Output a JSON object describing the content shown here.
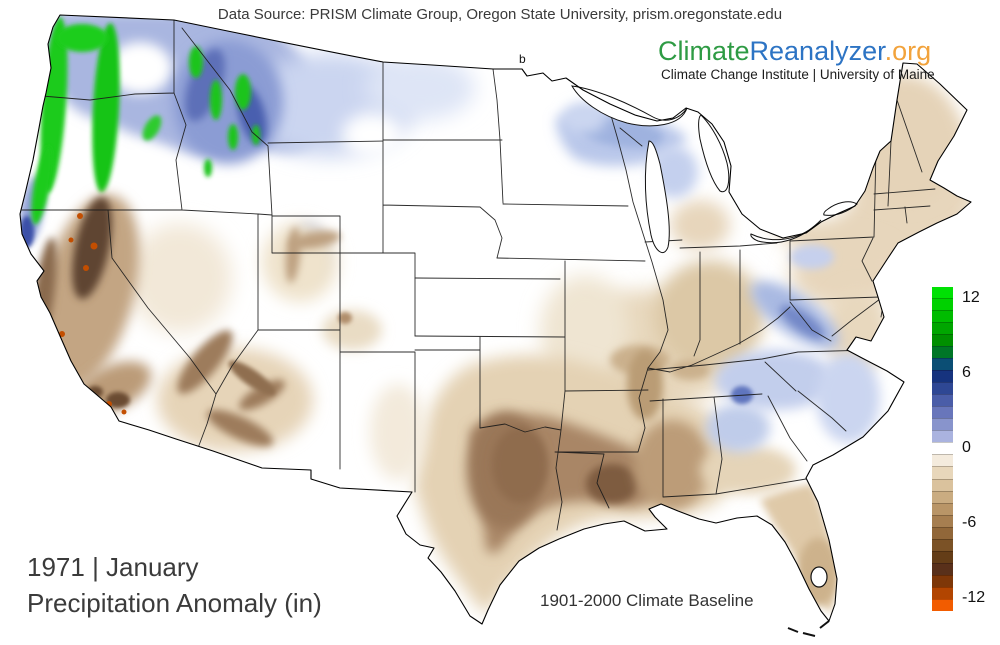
{
  "attribution": {
    "data_source": "Data Source: PRISM Climate Group, Oregon State University, prism.oregonstate.edu"
  },
  "branding": {
    "wordmark": {
      "part1": "Climate",
      "part2": "Reanalyzer",
      "part3": ".org",
      "part1_color": "#2E9B44",
      "part2_color": "#2D74C4",
      "part3_color": "#F2A33C"
    },
    "tagline": "Climate Change Institute | University of Maine"
  },
  "map_info": {
    "year_month": "1971 | January",
    "variable": "Precipitation Anomaly (in)",
    "baseline": "1901-2000 Climate Baseline",
    "stray_label": "b"
  },
  "colorbar": {
    "unit": "in",
    "min": -13,
    "max": 13,
    "ticks": [
      {
        "value": 12,
        "label": "12"
      },
      {
        "value": 6,
        "label": "6"
      },
      {
        "value": 0,
        "label": "0"
      },
      {
        "value": -6,
        "label": "-6"
      },
      {
        "value": -12,
        "label": "-12"
      }
    ],
    "colors": [
      "#00E104",
      "#00D100",
      "#00BC00",
      "#00A600",
      "#008F00",
      "#007627",
      "#0B4E74",
      "#16337E",
      "#2E4794",
      "#4A5DA8",
      "#6876BB",
      "#8894CC",
      "#AAB3DF",
      "#FFFFFF",
      "#F4EBDD",
      "#E8D7BB",
      "#DAC29D",
      "#CAAC81",
      "#B99567",
      "#A67E50",
      "#916739",
      "#7B5226",
      "#643D17",
      "#59301A",
      "#7E3708",
      "#B24501",
      "#F25C00"
    ]
  },
  "map_regions": {
    "base_land": "#FFFFFF",
    "white_patch": "#FFFFFF",
    "pnw_blue": "#A9B6E0",
    "montana_light_blue": "#CBD5F0",
    "dakotas_faint_blue": "#DEE5F6",
    "coastal_green": "#1BCB1B",
    "cascades_green": "#18C418",
    "olympics_green": "#1ACD1A",
    "idaho_montana_blue": "#8B9CD4",
    "idaho_blue_streak": "#5D70B8",
    "idaho_blue_streak2": "#4A5FAF",
    "mountain_green": "#1FC41F",
    "blue_mtns_green": "#2ECB2E",
    "or_ca_coast_blue": "#8FA0D6",
    "nw_ca_coast_navy": "#3A4FA8",
    "california_brown": "#C3A583",
    "sierra_dark_brown": "#5F4430",
    "ca_coast_range_brown": "#8A6A4E",
    "socal_brown": "#BB9B78",
    "socal_dark_spot": "#6B4B33",
    "deficit_orange_spot": "#C34E00",
    "nevada_faint_tan": "#F2E8D8",
    "utah_tan": "#EFE3CC",
    "utah_brown_vein": "#BDA080",
    "arizona_tan": "#E6D4B8",
    "arizona_brown_vein": "#9D7C5B",
    "mogollon_brown": "#8F6E4F",
    "sw_colorado_tan": "#E9DCC4",
    "san_juan_brown": "#B08E6C",
    "wyoming_blue_spike": "#2E49A5",
    "wyoming_blue_halo": "#AFBDE5",
    "east_nm_tan": "#F3EADB",
    "southern_plains_tan": "#E4D2B4",
    "gulf_brown_wash": "#A98666",
    "east_texas_brown": "#9A7758",
    "texas_brown_core": "#8F6C4E",
    "louisiana_dark_brown": "#7E5B41",
    "ms_al_brown": "#BC9C78",
    "midsouth_tan": "#E7D7BC",
    "ohio_valley_tan": "#DCC8A6",
    "ky_tn_brown": "#CBB18D",
    "west_tn_brown": "#BA9C75",
    "mo_tan_wash": "#EFE5D2",
    "ozark_tan": "#EDE1CB",
    "great_lakes_blue": "#B9C7EA",
    "superior_blue_core": "#9FB2DF",
    "n_michigan_blue": "#C4D0EE",
    "ne_minnesota_blue": "#CBD6F0",
    "northeast_tan": "#E7D6BC",
    "new_england_tan": "#E5D3B8",
    "vt_blue_fleck": "#CBD5EE",
    "pa_blue_patch": "#C6D0ED",
    "wv_va_blue": "#A9B9E2",
    "wv_va_blue_core": "#7388C8",
    "va_md_tan": "#E8D8BE",
    "carolina_blue": "#C2CEEC",
    "carolina_coast_blue": "#CBD5F0",
    "appalachian_blue_spot": "#5F74BE",
    "georgia_blue": "#BFCCEA",
    "south_georgia_tan": "#E5D4B8",
    "florida_tan": "#DFC9A8",
    "south_florida_tan": "#CDB28C"
  }
}
